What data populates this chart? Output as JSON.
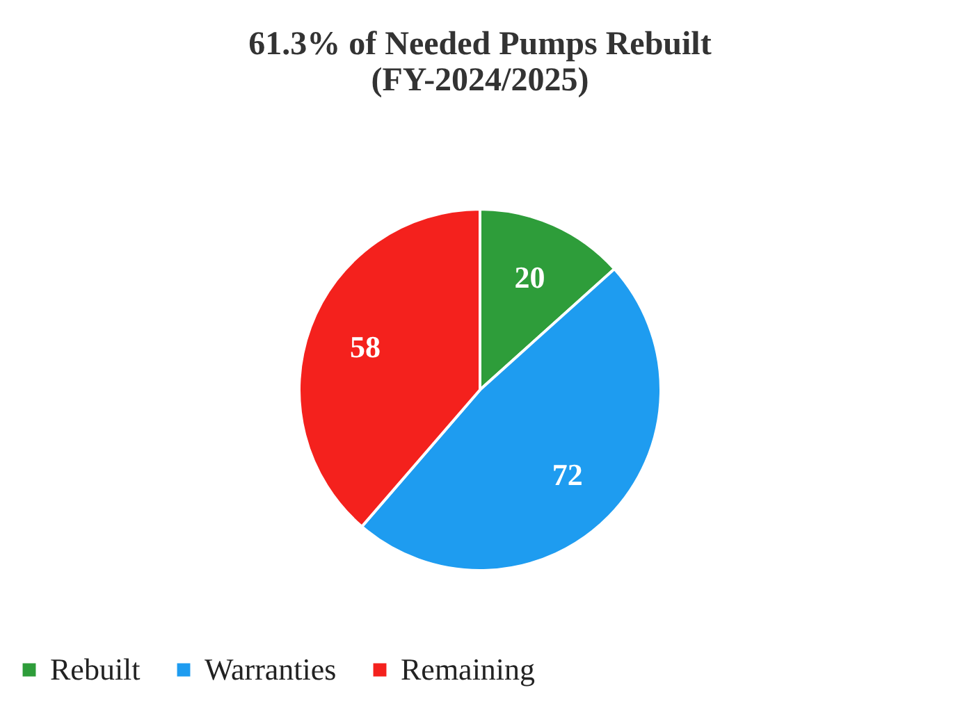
{
  "chart_data": {
    "type": "pie",
    "title": "61.3% of Needed Pumps Rebuilt\n(FY-2024/2025)",
    "categories": [
      "Rebuilt",
      "Warranties",
      "Remaining"
    ],
    "values": [
      20,
      72,
      58
    ],
    "colors": [
      "#2e9d3a",
      "#1e9cf0",
      "#f4211d"
    ],
    "data_labels": true,
    "legend": "bottom"
  }
}
